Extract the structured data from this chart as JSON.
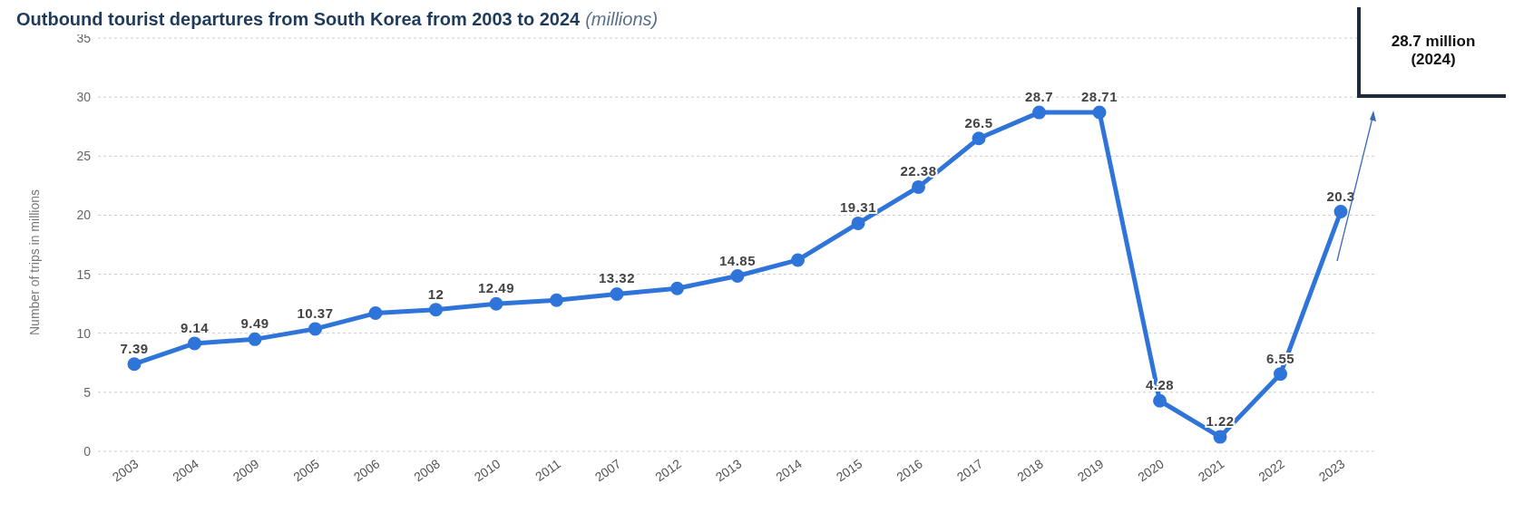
{
  "chart_data": {
    "type": "line",
    "title": "Outbound tourist departures from South Korea from 2003 to 2024",
    "subtitle": "(millions)",
    "ylabel": "Number of trips in millions",
    "categories": [
      "2003",
      "2004",
      "2009",
      "2005",
      "2006",
      "2008",
      "2010",
      "2011",
      "2007",
      "2012",
      "2013",
      "2014",
      "2015",
      "2016",
      "2017",
      "2018",
      "2019",
      "2020",
      "2021",
      "2022",
      "2023"
    ],
    "series": [
      {
        "color": "#2f74d8",
        "values": [
          7.39,
          9.14,
          9.49,
          10.37,
          11.7,
          12,
          12.49,
          12.8,
          13.32,
          13.8,
          14.85,
          16.2,
          19.31,
          22.38,
          26.5,
          28.7,
          28.71,
          4.28,
          1.22,
          6.55,
          20.3
        ],
        "value_labels": [
          "7.39",
          "9.14",
          "9.49",
          "10.37",
          null,
          "12",
          "12.49",
          null,
          "13.32",
          null,
          "14.85",
          null,
          "19.31",
          "22.38",
          "26.5",
          "28.7",
          "28.71",
          "4.28",
          "1.22",
          "6.55",
          "20.3"
        ]
      }
    ],
    "ylim": [
      0,
      35
    ],
    "yticks": [
      0,
      5,
      10,
      15,
      20,
      25,
      30,
      35
    ],
    "grid": "y",
    "marker": "circle",
    "line_style": "solid",
    "annotations": [
      "28.7 million\n(2024)"
    ]
  }
}
